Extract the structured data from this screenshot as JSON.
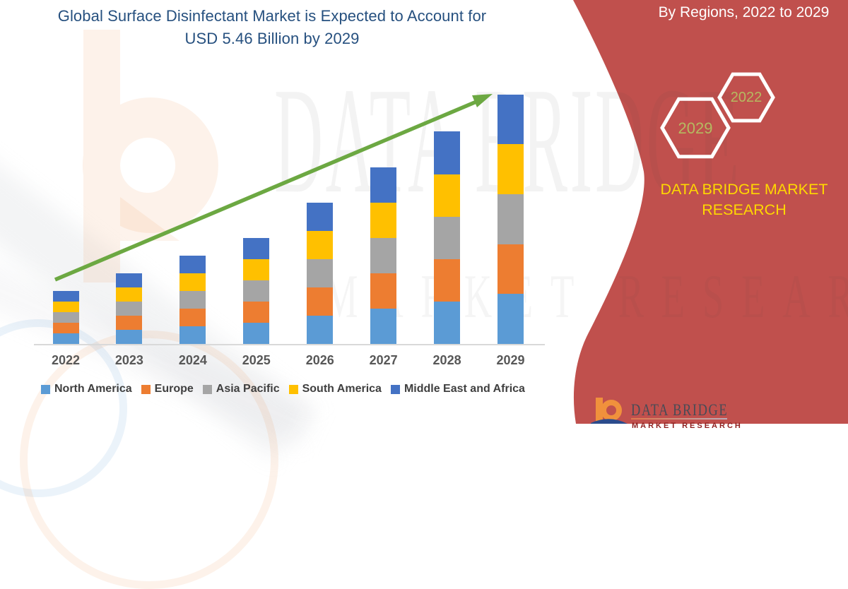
{
  "title": {
    "line1": "Global Surface Disinfectant Market is Expected to Account for",
    "line2": "USD 5.46 Billion by 2029"
  },
  "side_panel": {
    "heading": "By Regions, 2022 to 2029",
    "hexagon_large_label": "2029",
    "hexagon_small_label": "2022",
    "brand_line1": "DATA BRIDGE MARKET",
    "brand_line2": "RESEARCH",
    "panel_color": "#C0504D",
    "hexagon_stroke_color": "#FFFFFF",
    "hexagon_label_color": "#B5BA60",
    "brand_text_color": "#FFD800"
  },
  "watermark": {
    "line1": "DATA BRIDGE",
    "line2": "MARKET RESEARCH"
  },
  "logo": {
    "name": "DATA BRIDGE",
    "subtitle": "MARKET RESEARCH"
  },
  "chart_data": {
    "type": "bar",
    "stacked": true,
    "title": "Global Surface Disinfectant Market is Expected to Account for USD 5.46 Billion by 2029",
    "unit": "USD Billion (estimated from bar heights; 2029 total = 5.46)",
    "x": [
      "2022",
      "2023",
      "2024",
      "2025",
      "2026",
      "2027",
      "2028",
      "2029"
    ],
    "series": [
      {
        "name": "North America",
        "color": "#5B9BD5",
        "values": [
          0.232,
          0.31,
          0.387,
          0.464,
          0.619,
          0.774,
          0.929,
          1.092
        ]
      },
      {
        "name": "Europe",
        "color": "#ED7D31",
        "values": [
          0.232,
          0.31,
          0.387,
          0.464,
          0.619,
          0.774,
          0.929,
          1.092
        ]
      },
      {
        "name": "Asia Pacific",
        "color": "#A5A5A5",
        "values": [
          0.232,
          0.31,
          0.387,
          0.464,
          0.619,
          0.774,
          0.929,
          1.092
        ]
      },
      {
        "name": "South America",
        "color": "#FFC000",
        "values": [
          0.232,
          0.31,
          0.387,
          0.464,
          0.619,
          0.774,
          0.929,
          1.092
        ]
      },
      {
        "name": "Middle East and Africa",
        "color": "#4472C4",
        "values": [
          0.232,
          0.31,
          0.387,
          0.464,
          0.619,
          0.774,
          0.929,
          1.092
        ]
      }
    ],
    "totals": [
      1.16,
      1.55,
      1.94,
      2.32,
      3.1,
      3.87,
      4.65,
      5.46
    ],
    "ylim": [
      0,
      5.8
    ],
    "grid": false,
    "y_axis_visible": false,
    "legend_position": "bottom",
    "trend_arrow": {
      "present": true,
      "color": "#6CA842",
      "direction": "up-right"
    }
  }
}
